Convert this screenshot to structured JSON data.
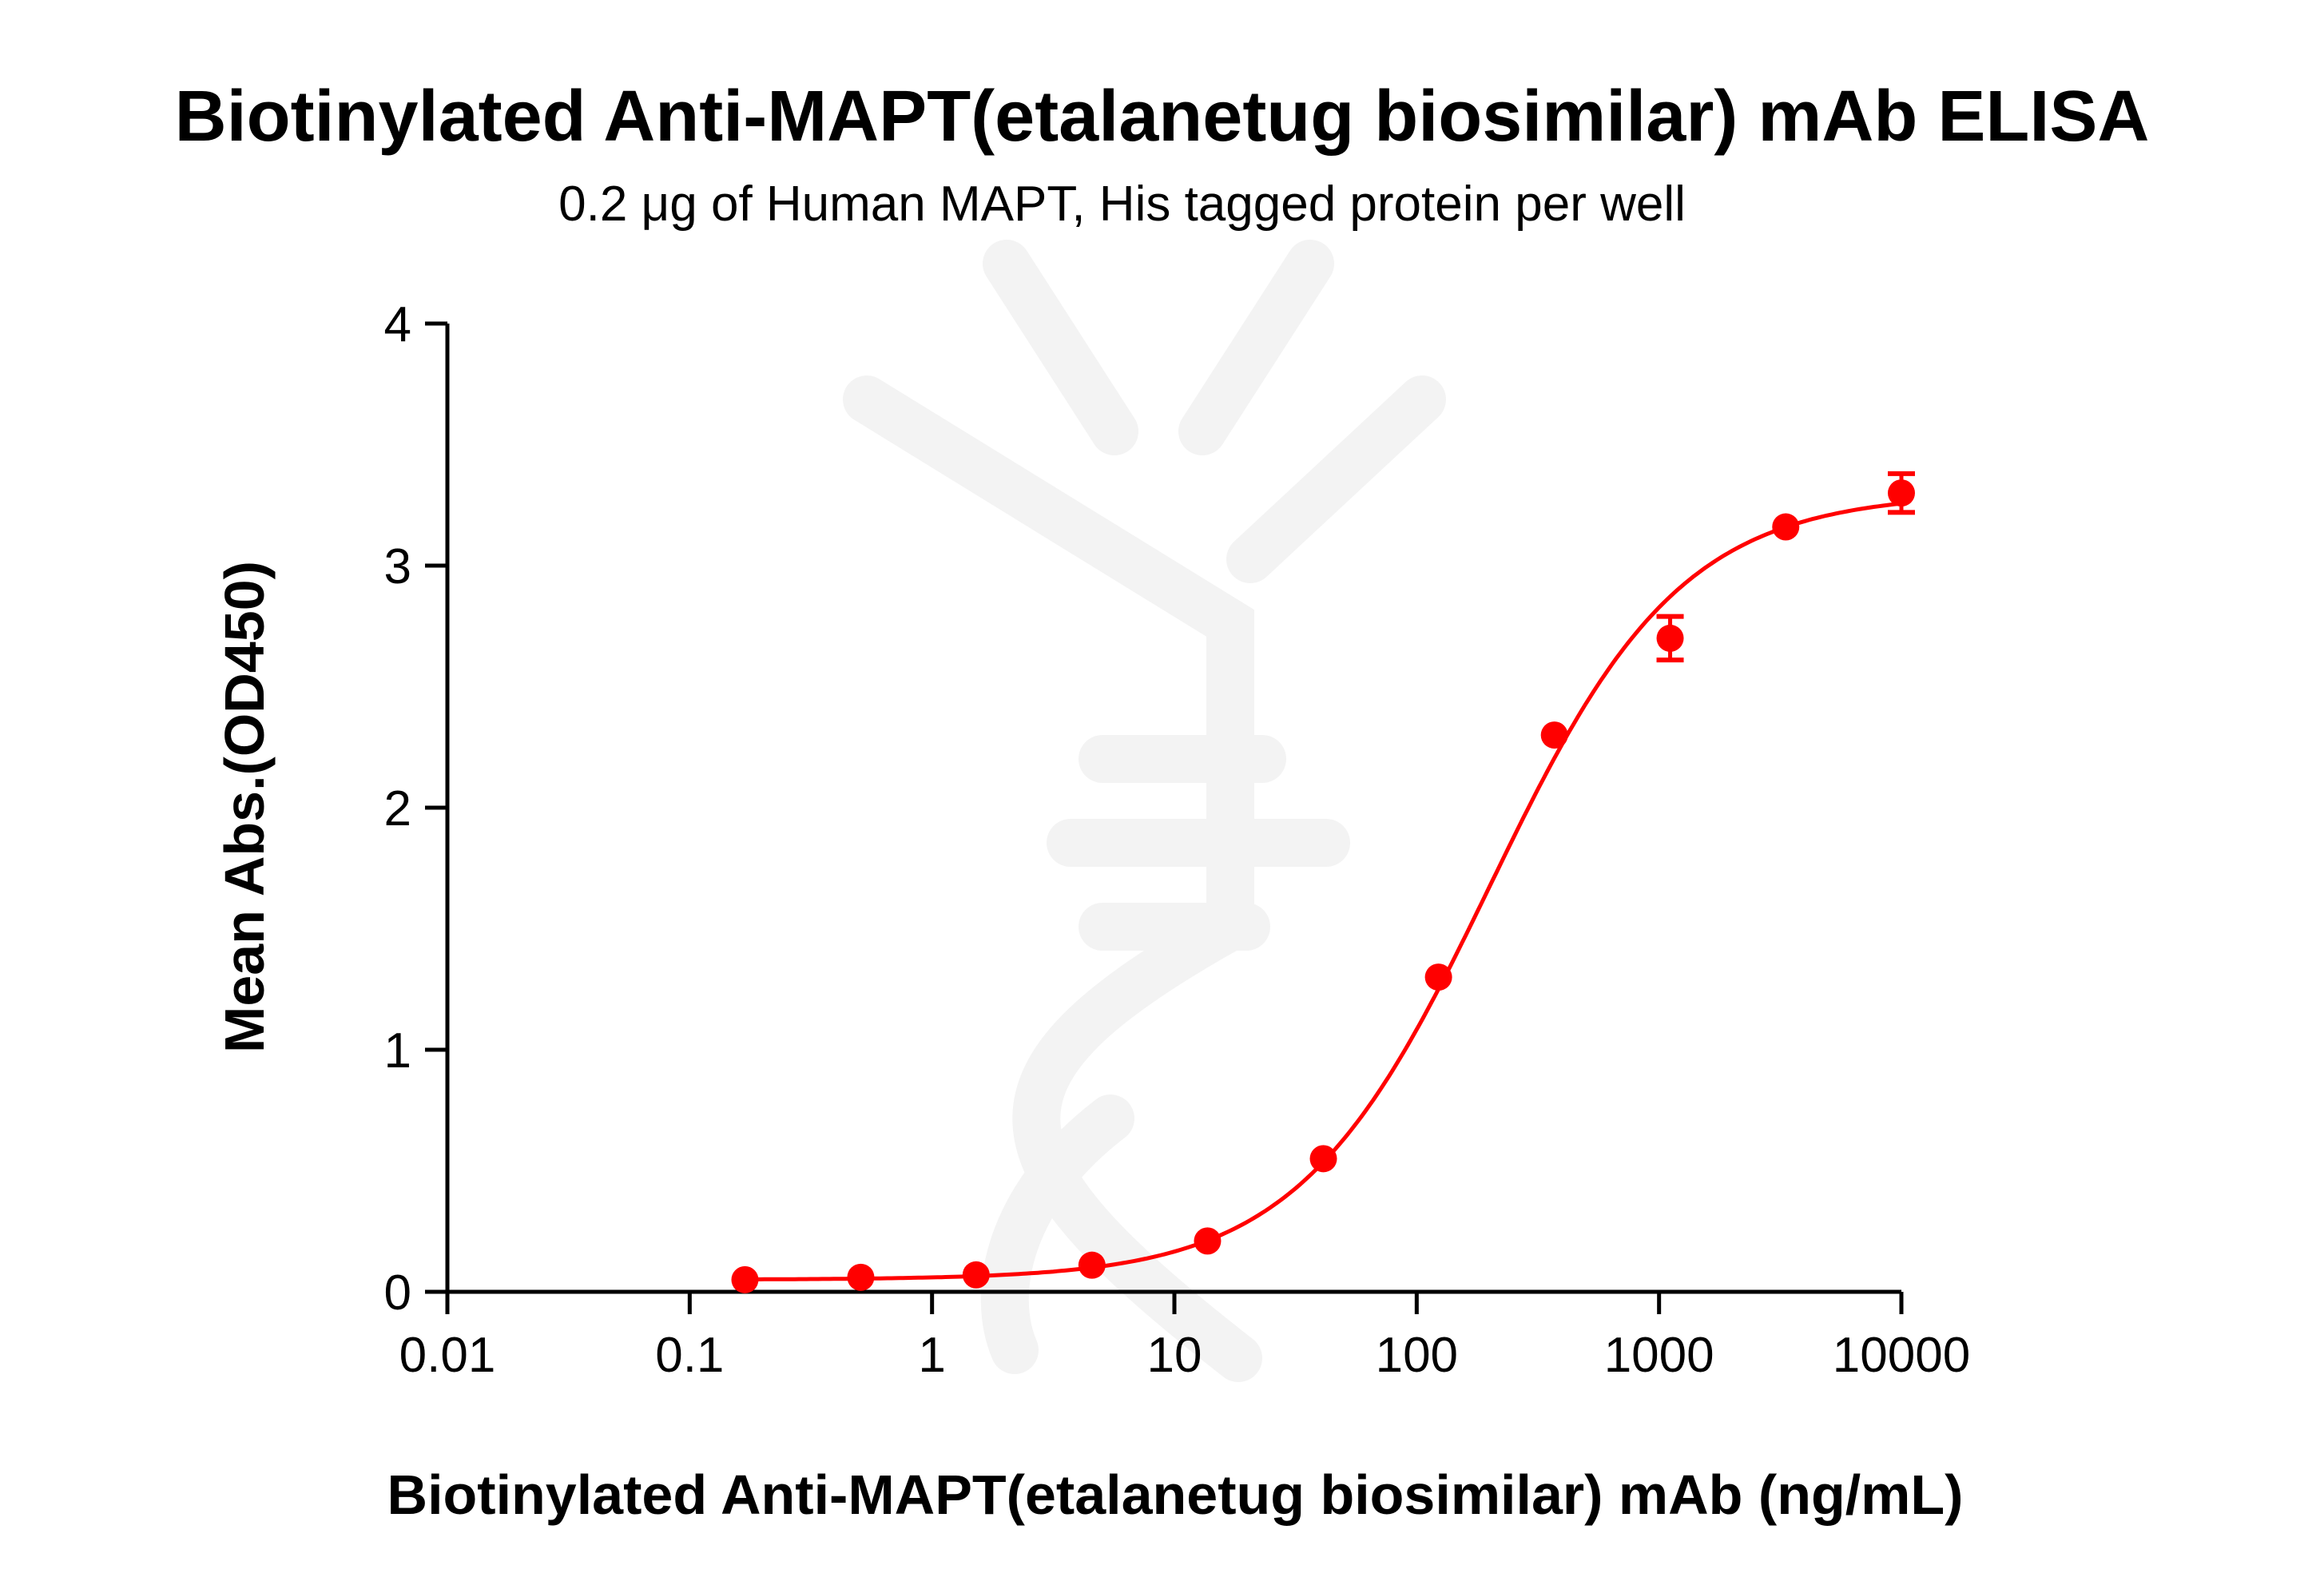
{
  "chart_data": {
    "type": "scatter",
    "title": "Biotinylated Anti-MAPT(etalanetug biosimilar) mAb ELISA",
    "subtitle": "0.2 μg of Human MAPT, His tagged protein per well",
    "xlabel": "Biotinylated Anti-MAPT(etalanetug biosimilar) mAb (ng/mL)",
    "ylabel": "Mean Abs.(OD450)",
    "xscale": "log",
    "xlim": [
      0.01,
      10000
    ],
    "ylim": [
      0,
      4
    ],
    "xticks": [
      "0.01",
      "0.1",
      "1",
      "10",
      "100",
      "1000",
      "10000"
    ],
    "yticks": [
      "0",
      "1",
      "2",
      "3",
      "4"
    ],
    "grid": false,
    "color": "#ff0000",
    "points": [
      {
        "x": 0.169,
        "y": 0.05,
        "err": 0
      },
      {
        "x": 0.508,
        "y": 0.06,
        "err": 0
      },
      {
        "x": 1.52,
        "y": 0.07,
        "err": 0
      },
      {
        "x": 4.57,
        "y": 0.11,
        "err": 0
      },
      {
        "x": 13.7,
        "y": 0.21,
        "err": 0
      },
      {
        "x": 41.2,
        "y": 0.55,
        "err": 0
      },
      {
        "x": 123,
        "y": 1.3,
        "err": 0
      },
      {
        "x": 370,
        "y": 2.3,
        "err": 0
      },
      {
        "x": 1111,
        "y": 2.7,
        "err": 0.09
      },
      {
        "x": 3333,
        "y": 3.16,
        "err": 0
      },
      {
        "x": 10000,
        "y": 3.3,
        "err": 0.08
      }
    ],
    "fit": {
      "model": "4PL",
      "bottom": 0.05,
      "top": 3.3,
      "ec50": 200,
      "hill": 1.1
    }
  }
}
